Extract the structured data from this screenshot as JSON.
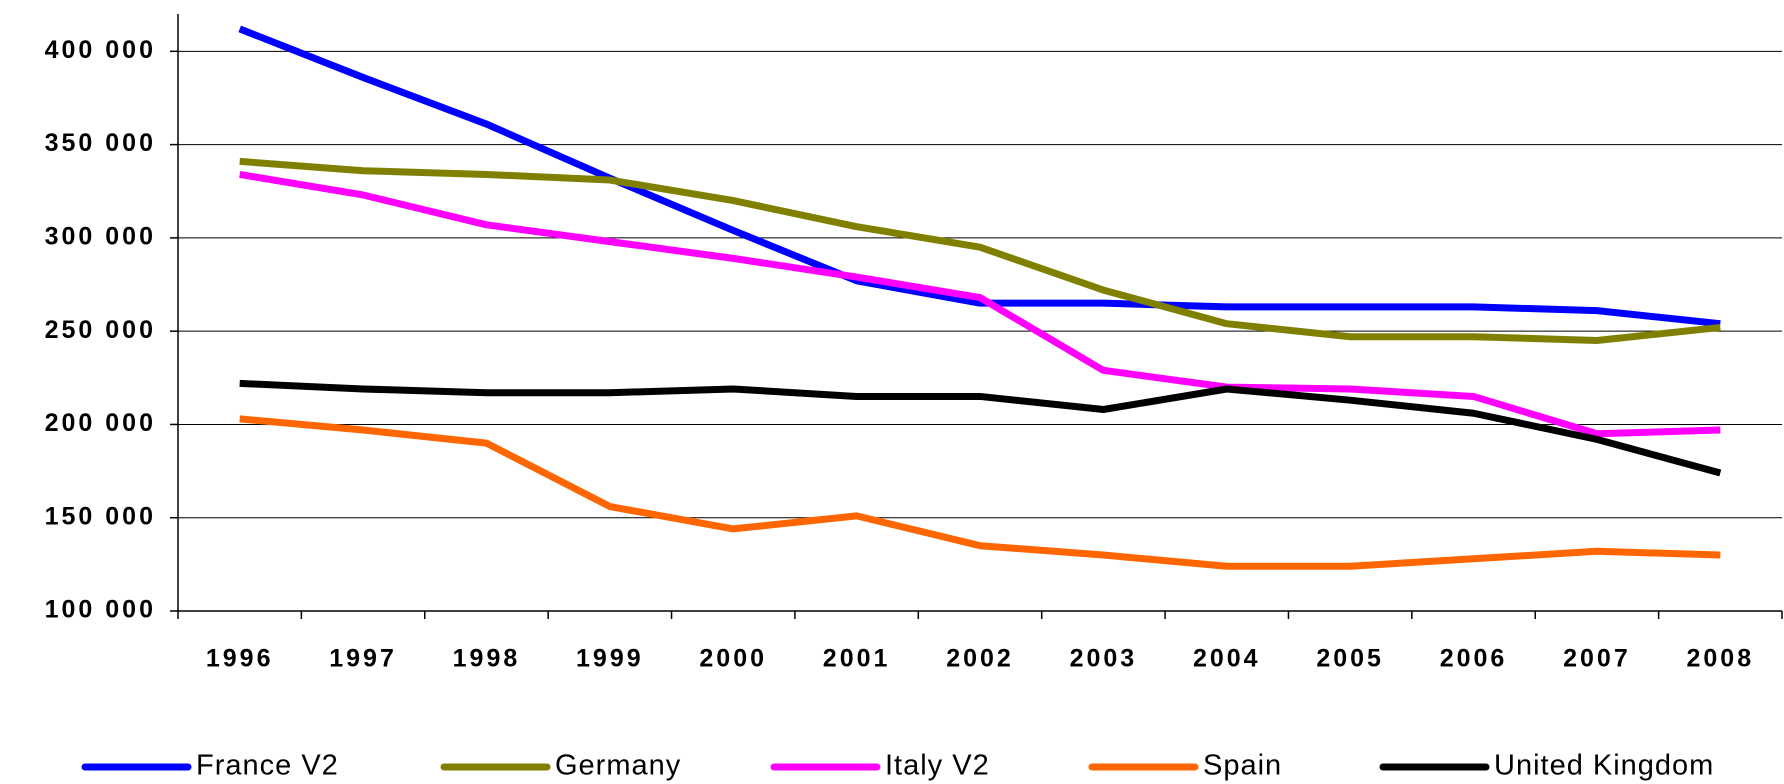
{
  "chart_data": {
    "type": "line",
    "categories": [
      "1996",
      "1997",
      "1998",
      "1999",
      "2000",
      "2001",
      "2002",
      "2003",
      "2004",
      "2005",
      "2006",
      "2007",
      "2008"
    ],
    "series": [
      {
        "name": "France V2",
        "color": "#0000ff",
        "values": [
          412000,
          386000,
          361000,
          332000,
          304000,
          277000,
          265000,
          265000,
          263000,
          263000,
          263000,
          261000,
          254000
        ]
      },
      {
        "name": "Germany",
        "color": "#808000",
        "values": [
          341000,
          336000,
          334000,
          331000,
          320000,
          306000,
          295000,
          272000,
          254000,
          247000,
          247000,
          245000,
          252000
        ]
      },
      {
        "name": "Italy V2",
        "color": "#ff00ff",
        "values": [
          334000,
          323000,
          307000,
          298000,
          289000,
          279000,
          268000,
          229000,
          220000,
          219000,
          215000,
          195000,
          197000
        ]
      },
      {
        "name": "Spain",
        "color": "#ff6600",
        "values": [
          203000,
          197000,
          190000,
          156000,
          144000,
          151000,
          135000,
          130000,
          124000,
          124000,
          128000,
          132000,
          130000
        ]
      },
      {
        "name": "United Kingdom",
        "color": "#000000",
        "values": [
          222000,
          219000,
          217000,
          217000,
          219000,
          215000,
          215000,
          208000,
          219000,
          213000,
          206000,
          192000,
          174000
        ]
      }
    ],
    "ylim": [
      100000,
      420000
    ],
    "yticks": [
      {
        "value": 100000,
        "label": "100 000"
      },
      {
        "value": 150000,
        "label": "150 000"
      },
      {
        "value": 200000,
        "label": "200 000"
      },
      {
        "value": 250000,
        "label": "250 000"
      },
      {
        "value": 300000,
        "label": "300 000"
      },
      {
        "value": 350000,
        "label": "350 000"
      },
      {
        "value": 400000,
        "label": "400 000"
      }
    ],
    "grid": true,
    "legend": "bottom"
  }
}
